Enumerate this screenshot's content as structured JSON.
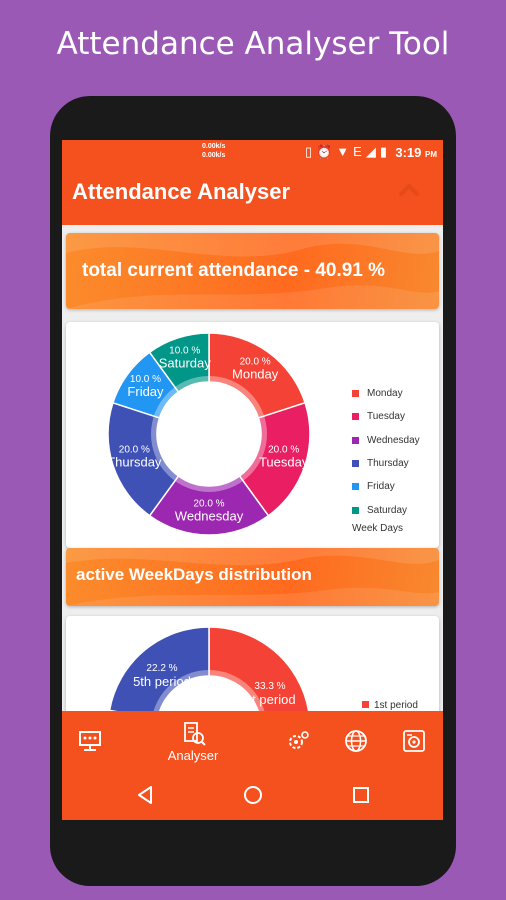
{
  "promo": {
    "title": "Attendance Analyser Tool"
  },
  "status_bar": {
    "net_up": "0.00k/s",
    "net_down": "0.00k/s",
    "time": "3:19",
    "ampm": "PM"
  },
  "app_bar": {
    "title": "Attendance Analyser"
  },
  "attendance_banner": {
    "text": "total current attendance - 40.91 %"
  },
  "weekday_chart": {
    "legend_title": "Week Days",
    "chart_data": {
      "type": "pie",
      "donut": true,
      "categories": [
        "Monday",
        "Tuesday",
        "Wednesday",
        "Thursday",
        "Friday",
        "Saturday"
      ],
      "values": [
        20.0,
        20.0,
        20.0,
        20.0,
        10.0,
        10.0
      ],
      "labels": [
        "20.0 %",
        "20.0 %",
        "20.0 %",
        "20.0 %",
        "10.0 %",
        "10.0 %"
      ],
      "colors": [
        "#f44336",
        "#e91e63",
        "#9c27b0",
        "#3f51b5",
        "#2196f3",
        "#009688"
      ],
      "legend_title": "Week Days",
      "legend_position": "right"
    }
  },
  "distribution_banner": {
    "text": "active WeekDays distribution"
  },
  "period_chart": {
    "chart_data": {
      "type": "pie",
      "donut": true,
      "partially_visible": true,
      "visible_slices": [
        {
          "name": "5th period",
          "label": "22.2 %",
          "value": 22.2,
          "color": "#3f51b5"
        },
        {
          "name": "1st period",
          "label": "33.3 %",
          "value": 33.3,
          "color": "#f44336"
        }
      ],
      "legend": [
        {
          "name": "1st period",
          "color": "#f44336"
        }
      ]
    }
  },
  "bottom_nav": {
    "active_label": "Analyser"
  },
  "colors": {
    "accent": "#f4511e",
    "background": "#9b59b6"
  }
}
